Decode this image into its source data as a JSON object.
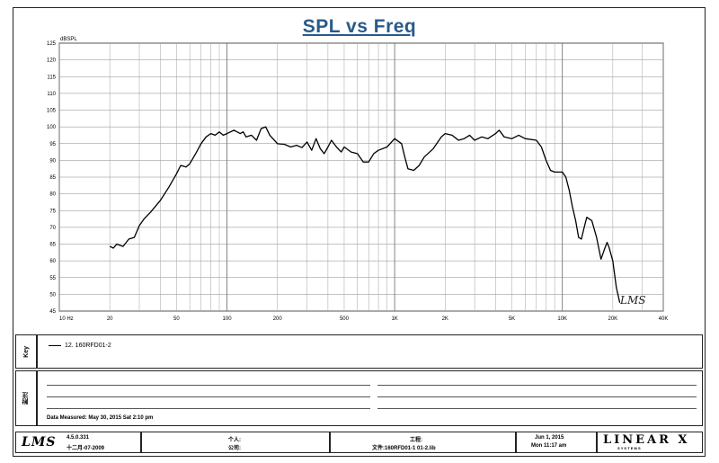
{
  "chart_data": {
    "type": "line",
    "title": "SPL vs Freq",
    "ylabel": "dBSPL",
    "xscale": "log",
    "xlim": [
      10,
      40000
    ],
    "ylim": [
      45,
      125
    ],
    "grid": true,
    "y_ticks": [
      "125",
      "120",
      "115",
      "110",
      "105",
      "100",
      "95",
      "90",
      "85",
      "80",
      "75",
      "70",
      "65",
      "60",
      "55",
      "50",
      "45"
    ],
    "x_ticks": [
      {
        "value": 10,
        "label": "10 Hz"
      },
      {
        "value": 20,
        "label": "20"
      },
      {
        "value": 50,
        "label": "50"
      },
      {
        "value": 100,
        "label": "100"
      },
      {
        "value": 200,
        "label": "200"
      },
      {
        "value": 500,
        "label": "500"
      },
      {
        "value": 1000,
        "label": "1K"
      },
      {
        "value": 2000,
        "label": "2K"
      },
      {
        "value": 5000,
        "label": "5K"
      },
      {
        "value": 10000,
        "label": "10K"
      },
      {
        "value": 20000,
        "label": "20K"
      },
      {
        "value": 40000,
        "label": "40K"
      }
    ],
    "watermark": "LMS",
    "series": [
      {
        "name": "12. 160RFD01-2",
        "color": "#000000",
        "points": [
          [
            20,
            64.3
          ],
          [
            21,
            63.8
          ],
          [
            22,
            65.0
          ],
          [
            24,
            64.3
          ],
          [
            26,
            66.5
          ],
          [
            28,
            67.0
          ],
          [
            30,
            70.5
          ],
          [
            32,
            72.5
          ],
          [
            35,
            74.5
          ],
          [
            40,
            78.0
          ],
          [
            45,
            82.0
          ],
          [
            50,
            86.0
          ],
          [
            53,
            88.5
          ],
          [
            57,
            88.0
          ],
          [
            60,
            89.0
          ],
          [
            65,
            92.0
          ],
          [
            70,
            95.0
          ],
          [
            75,
            97.0
          ],
          [
            80,
            98.0
          ],
          [
            85,
            97.5
          ],
          [
            90,
            98.5
          ],
          [
            95,
            97.5
          ],
          [
            100,
            98.0
          ],
          [
            110,
            99.0
          ],
          [
            120,
            98.0
          ],
          [
            125,
            98.5
          ],
          [
            130,
            97.0
          ],
          [
            140,
            97.5
          ],
          [
            150,
            96.0
          ],
          [
            160,
            99.5
          ],
          [
            170,
            100.0
          ],
          [
            180,
            97.5
          ],
          [
            200,
            95.0
          ],
          [
            220,
            94.8
          ],
          [
            240,
            94.0
          ],
          [
            260,
            94.5
          ],
          [
            280,
            93.8
          ],
          [
            300,
            95.5
          ],
          [
            320,
            93.0
          ],
          [
            340,
            96.5
          ],
          [
            360,
            93.5
          ],
          [
            380,
            92.0
          ],
          [
            400,
            94.0
          ],
          [
            420,
            96.0
          ],
          [
            450,
            94.0
          ],
          [
            480,
            92.5
          ],
          [
            500,
            94.0
          ],
          [
            550,
            92.5
          ],
          [
            600,
            92.0
          ],
          [
            650,
            89.5
          ],
          [
            700,
            89.5
          ],
          [
            750,
            92.0
          ],
          [
            800,
            93.0
          ],
          [
            900,
            94.0
          ],
          [
            1000,
            96.5
          ],
          [
            1100,
            95.0
          ],
          [
            1150,
            91.0
          ],
          [
            1200,
            87.5
          ],
          [
            1300,
            87.0
          ],
          [
            1400,
            88.5
          ],
          [
            1500,
            91.0
          ],
          [
            1700,
            93.5
          ],
          [
            1900,
            97.0
          ],
          [
            2000,
            98.0
          ],
          [
            2200,
            97.5
          ],
          [
            2400,
            96.0
          ],
          [
            2600,
            96.5
          ],
          [
            2800,
            97.5
          ],
          [
            3000,
            96.0
          ],
          [
            3300,
            97.0
          ],
          [
            3600,
            96.5
          ],
          [
            4000,
            98.0
          ],
          [
            4200,
            99.0
          ],
          [
            4500,
            97.0
          ],
          [
            5000,
            96.5
          ],
          [
            5500,
            97.5
          ],
          [
            6000,
            96.5
          ],
          [
            7000,
            96.0
          ],
          [
            7500,
            94.0
          ],
          [
            8000,
            90.0
          ],
          [
            8500,
            87.0
          ],
          [
            9000,
            86.5
          ],
          [
            10000,
            86.5
          ],
          [
            10500,
            85.0
          ],
          [
            11000,
            81.0
          ],
          [
            11500,
            76.0
          ],
          [
            12000,
            72.0
          ],
          [
            12500,
            67.0
          ],
          [
            13000,
            66.5
          ],
          [
            13500,
            70.0
          ],
          [
            14000,
            73.0
          ],
          [
            15000,
            72.0
          ],
          [
            16000,
            67.0
          ],
          [
            17000,
            60.5
          ],
          [
            18000,
            64.0
          ],
          [
            18500,
            65.5
          ],
          [
            19000,
            64.0
          ],
          [
            20000,
            60.0
          ],
          [
            21000,
            52.0
          ],
          [
            22000,
            47.5
          ]
        ]
      }
    ]
  },
  "panels": {
    "legend_label": "Key",
    "notes_label": "附注",
    "date_measured": "Data Measured: May 30, 2015  Sat  2:10 pm"
  },
  "footer": {
    "logo": "LMS",
    "version": "4.5.0.331",
    "version_date": "十二月-07-2009",
    "user_label": "个人:",
    "company_label": "公司:",
    "project_label": "工程:",
    "file_label": "文件:160RFD01-1  01-2.lib",
    "date": "Jun  1, 2015",
    "time": "Mon 11:17 am",
    "brand": "LINEAR X",
    "brand_sub": "S Y S T E M S"
  }
}
